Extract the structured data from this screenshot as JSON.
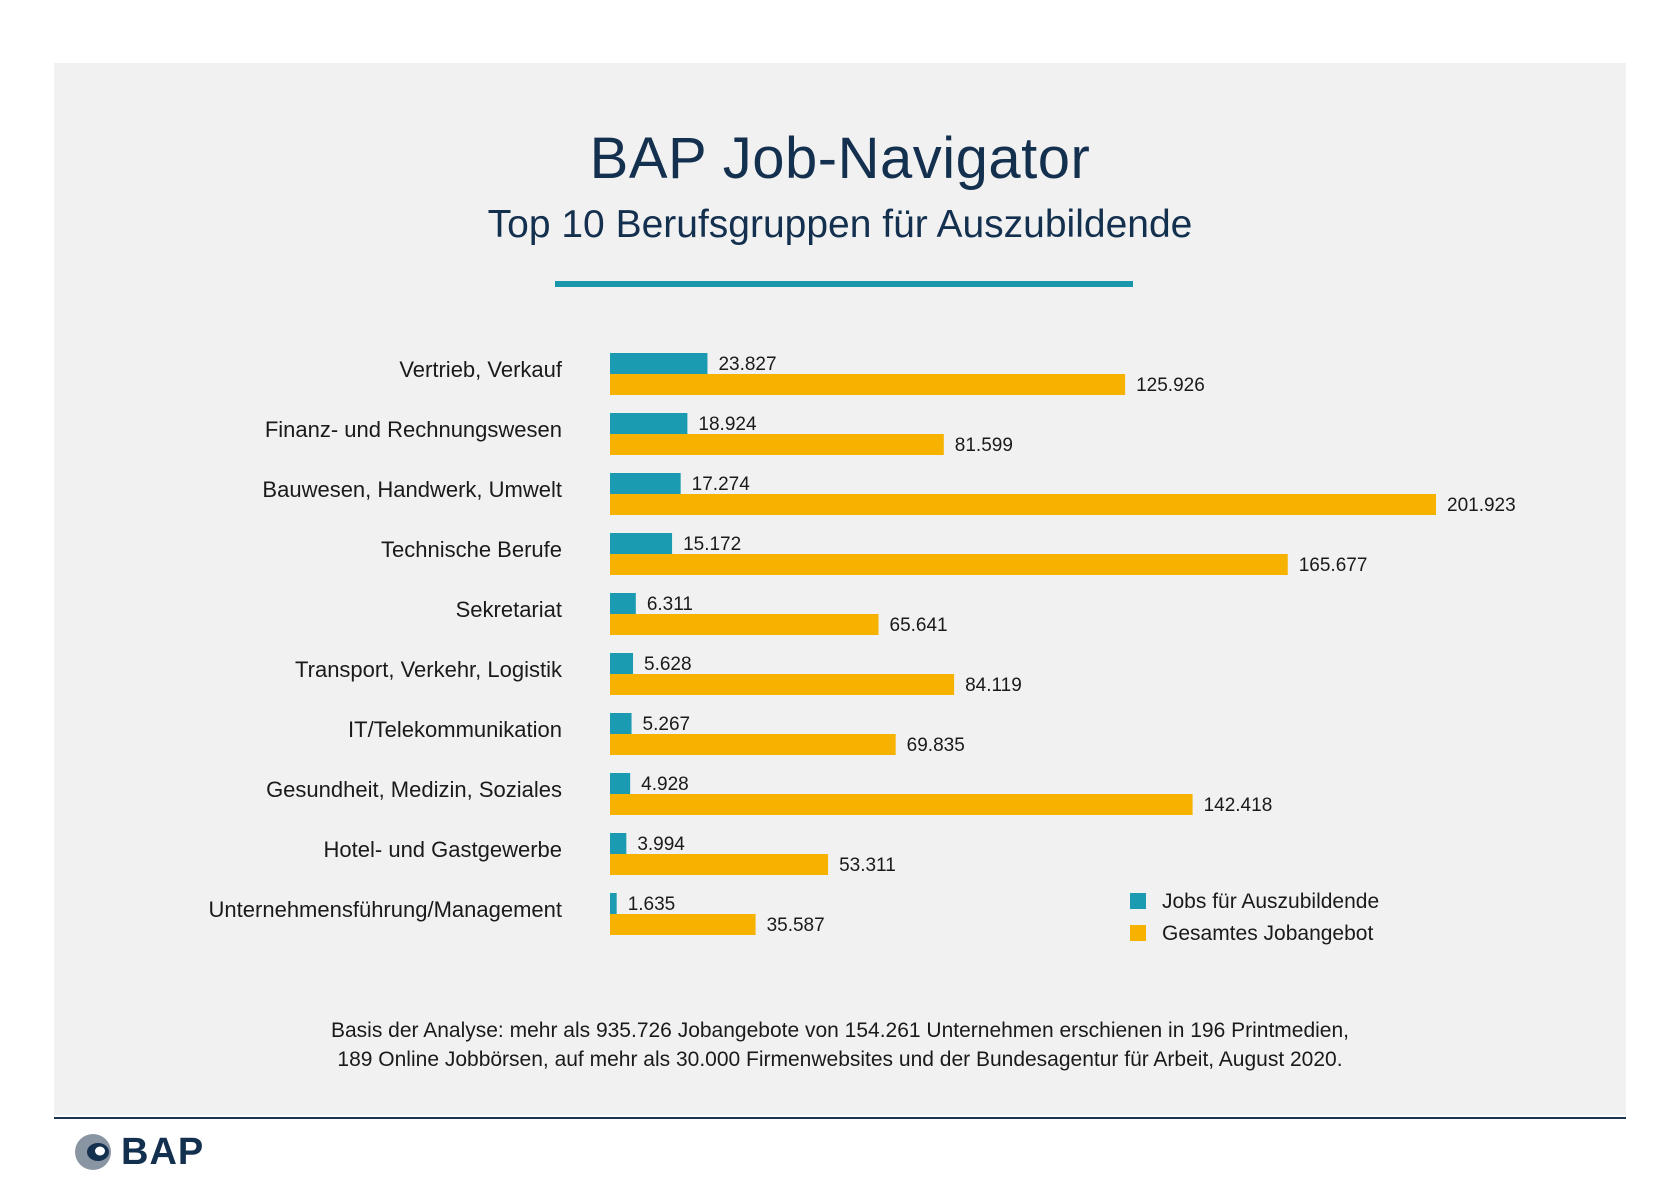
{
  "header": {
    "title": "BAP Job-Navigator",
    "subtitle": "Top 10 Berufsgruppen für Auszubildende"
  },
  "chart_data": {
    "type": "bar",
    "orientation": "horizontal",
    "title": "Top 10 Berufsgruppen für Auszubildende",
    "categories": [
      "Vertrieb, Verkauf",
      "Finanz- und Rechnungswesen",
      "Bauwesen, Handwerk, Umwelt",
      "Technische Berufe",
      "Sekretariat",
      "Transport, Verkehr, Logistik",
      "IT/Telekommunikation",
      "Gesundheit, Medizin, Soziales",
      "Hotel- und Gastgewerbe",
      "Unternehmensführung/Management"
    ],
    "series": [
      {
        "name": "Jobs für Auszubildende",
        "color": "#1b9bb2",
        "values": [
          23827,
          18924,
          17274,
          15172,
          6311,
          5628,
          5267,
          4928,
          3994,
          1635
        ],
        "labels": [
          "23.827",
          "18.924",
          "17.274",
          "15.172",
          "6.311",
          "5.628",
          "5.267",
          "4.928",
          "3.994",
          "1.635"
        ]
      },
      {
        "name": "Gesamtes Jobangebot",
        "color": "#f7b200",
        "values": [
          125926,
          81599,
          201923,
          165677,
          65641,
          84119,
          69835,
          142418,
          53311,
          35587
        ],
        "labels": [
          "125.926",
          "81.599",
          "201.923",
          "165.677",
          "65.641",
          "84.119",
          "69.835",
          "142.418",
          "53.311",
          "35.587"
        ]
      }
    ],
    "xlim": [
      0,
      201923
    ],
    "grid": false,
    "legend": "bottom-right"
  },
  "footer": {
    "line1": "Basis der Analyse: mehr als 935.726 Jobangebote von 154.261 Unternehmen erschienen in 196 Printmedien,",
    "line2": "189 Online Jobbörsen, auf mehr als 30.000 Firmenwebsites und der Bundesagentur für Arbeit, August 2020."
  },
  "logo": {
    "text": "BAP",
    "icon": "bap-logo-icon"
  }
}
